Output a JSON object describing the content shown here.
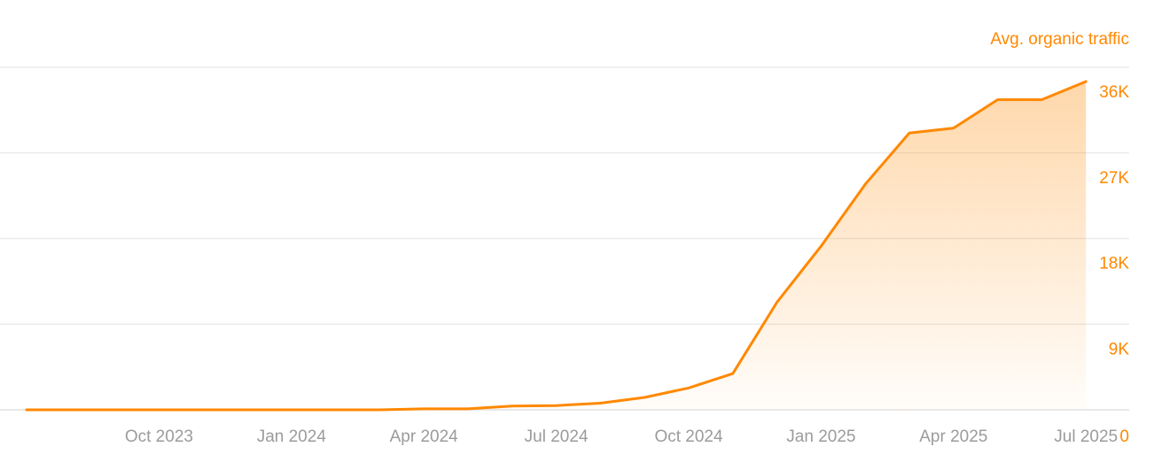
{
  "colors": {
    "accent": "#ff8800",
    "grid": "#ebebeb",
    "tick_text": "#9b9b9b"
  },
  "chart_data": {
    "type": "area",
    "title": "",
    "xlabel": "",
    "ylabel": "Avg. organic traffic",
    "y_axis_position": "right",
    "grid": true,
    "legend": "none",
    "xlim": [
      "2023-07",
      "2025-07"
    ],
    "ylim": [
      0,
      36000
    ],
    "x_tick_labels": [
      "Oct 2023",
      "Jan 2024",
      "Apr 2024",
      "Jul 2024",
      "Oct 2024",
      "Jan 2025",
      "Apr 2025",
      "Jul 2025"
    ],
    "y_ticks": [
      0,
      9000,
      18000,
      27000,
      36000
    ],
    "y_tick_labels": [
      "0",
      "9K",
      "18K",
      "27K",
      "36K"
    ],
    "x": [
      "2023-07",
      "2023-08",
      "2023-09",
      "2023-10",
      "2023-11",
      "2023-12",
      "2024-01",
      "2024-02",
      "2024-03",
      "2024-04",
      "2024-05",
      "2024-06",
      "2024-07",
      "2024-08",
      "2024-09",
      "2024-10",
      "2024-11",
      "2024-12",
      "2025-01",
      "2025-02",
      "2025-03",
      "2025-04",
      "2025-05",
      "2025-06",
      "2025-07"
    ],
    "series": [
      {
        "values": [
          0,
          0,
          0,
          0,
          0,
          0,
          0,
          0,
          0,
          100,
          100,
          400,
          450,
          700,
          1300,
          2300,
          3800,
          11300,
          17200,
          23700,
          29100,
          29600,
          32600,
          32600,
          34500
        ]
      }
    ]
  }
}
